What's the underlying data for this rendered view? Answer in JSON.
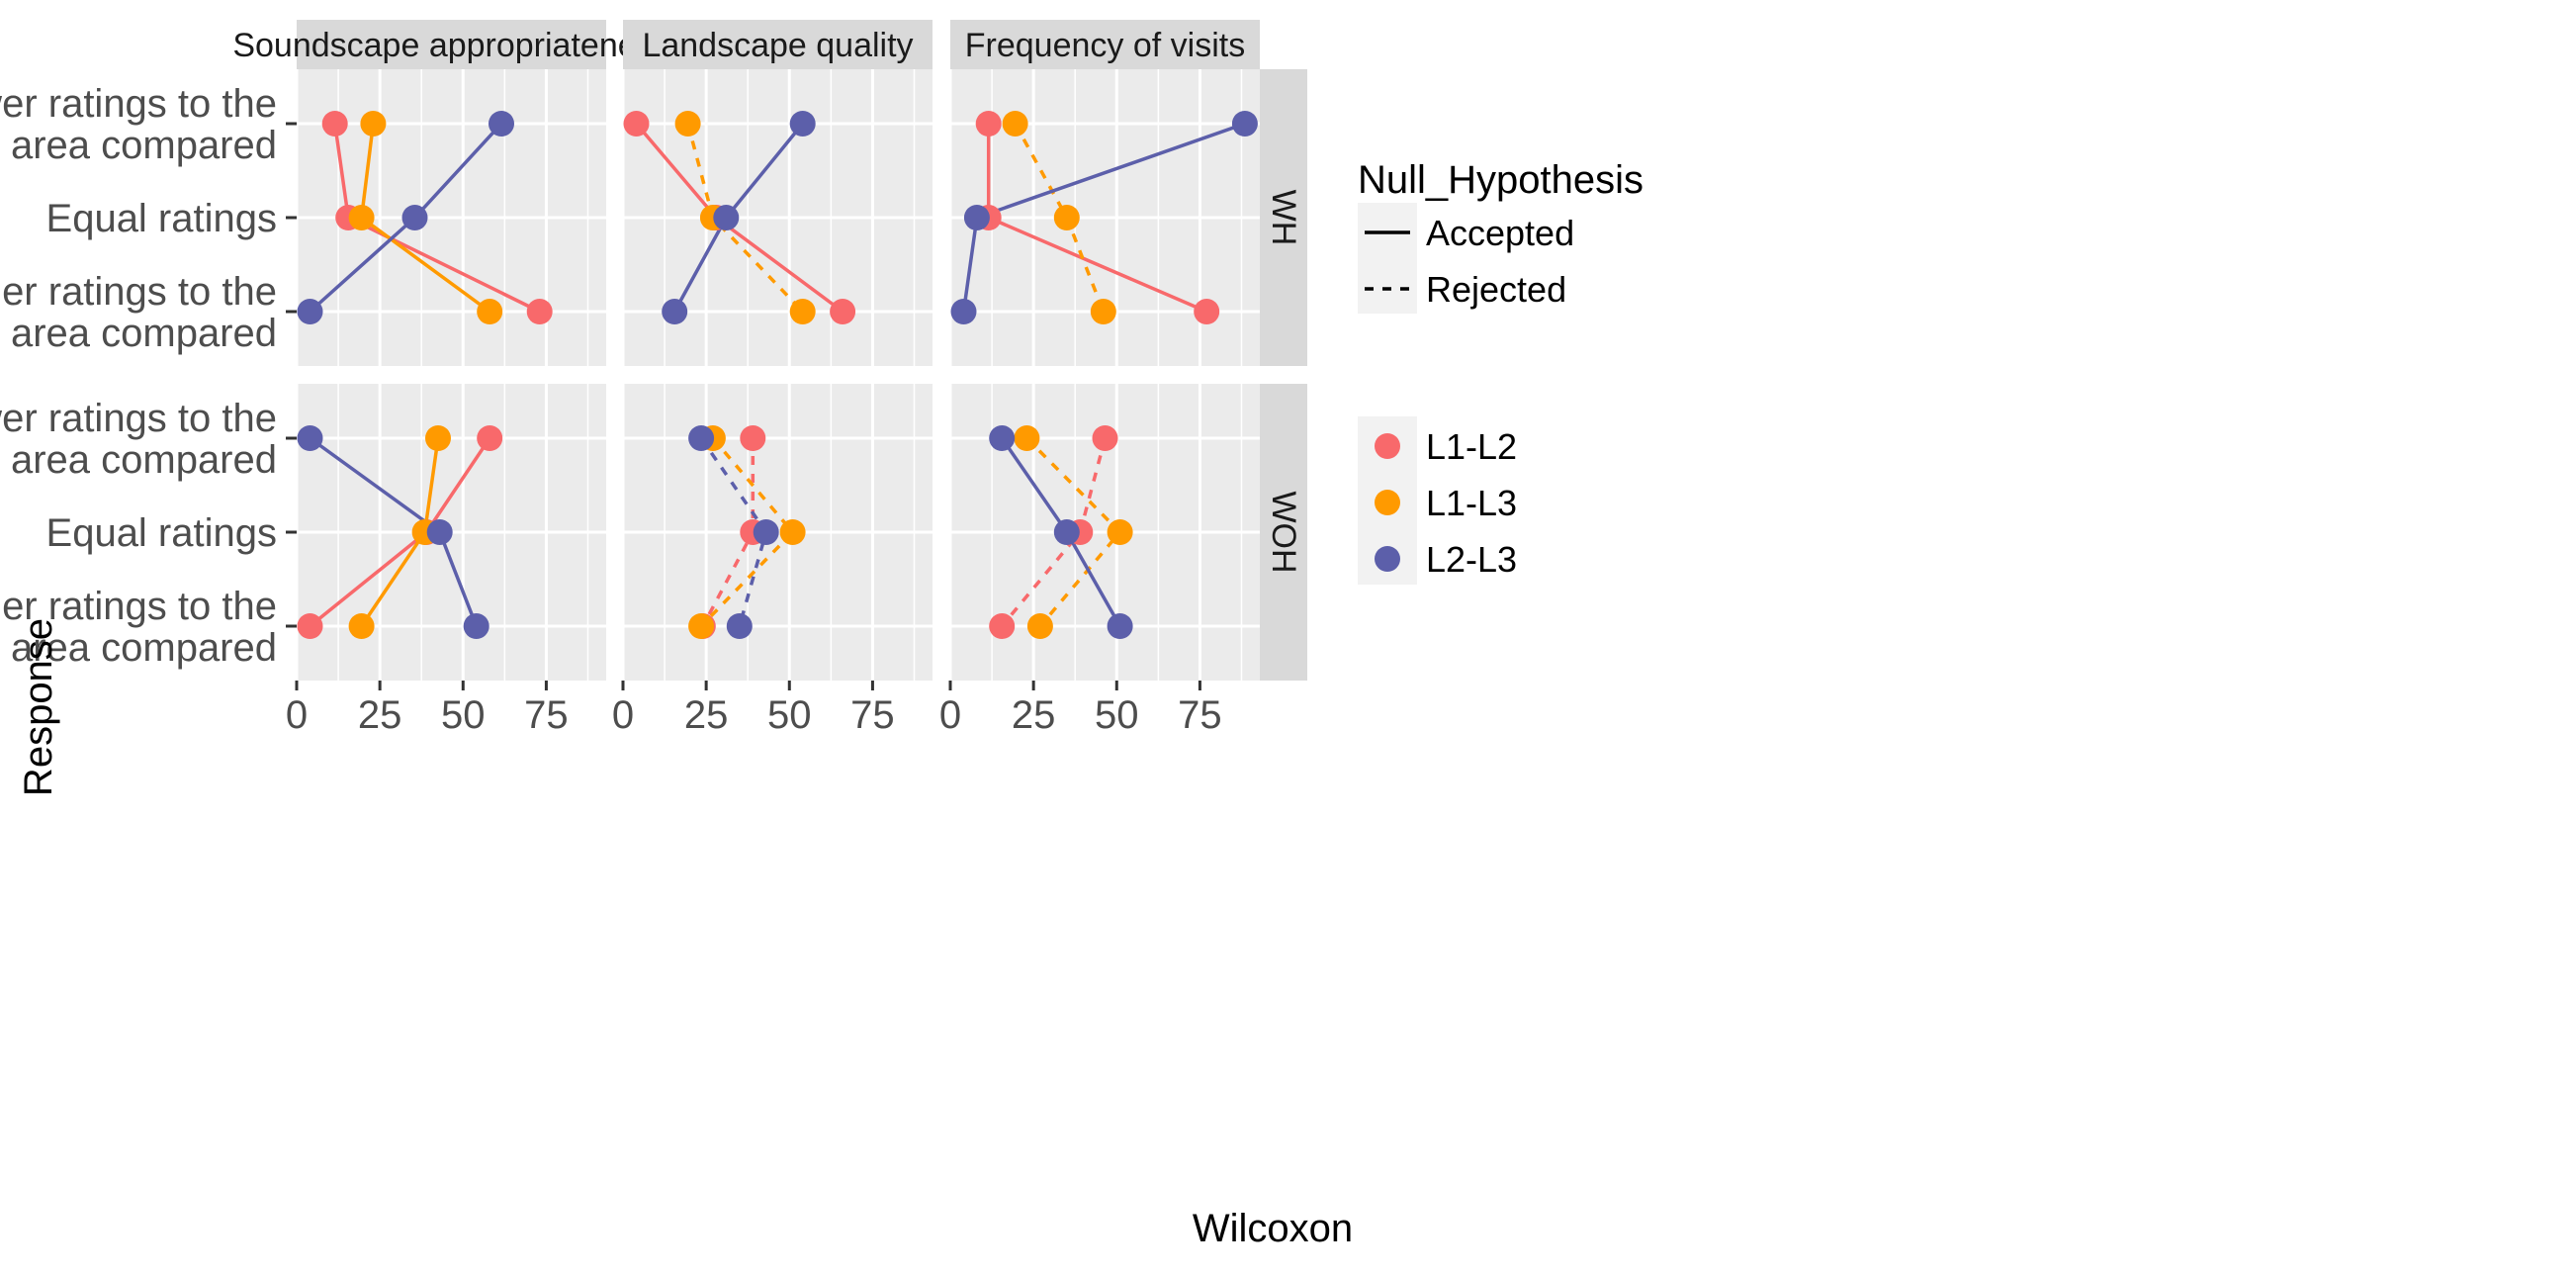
{
  "chart_data": {
    "type": "line",
    "xlabel": "Wilcoxon",
    "ylabel": "Response",
    "xlim": [
      0,
      93
    ],
    "xticks": [
      0,
      25,
      50,
      75
    ],
    "responses": [
      "Lower ratings to the first area compared",
      "Equal ratings",
      "Higher ratings to the first area compared"
    ],
    "response_lines": [
      [
        "Lower ratings to the",
        "first area compared"
      ],
      [
        "Equal ratings"
      ],
      [
        "Higher ratings to the",
        "first area compared"
      ]
    ],
    "columns": [
      "Soundscape appropriateness",
      "Landscape quality",
      "Frequency of visits"
    ],
    "rows": [
      "WH",
      "WOH"
    ],
    "legend": {
      "linetype_title": "Null_Hypothesis",
      "linetypes": [
        {
          "label": "Accepted",
          "dash": "solid"
        },
        {
          "label": "Rejected",
          "dash": "dashed"
        }
      ],
      "colors": [
        {
          "label": "L1-L2",
          "color": "#F8696B"
        },
        {
          "label": "L1-L3",
          "color": "#FF9A00"
        },
        {
          "label": "L2-L3",
          "color": "#5C5FAA"
        }
      ]
    },
    "panels": [
      {
        "row": "WH",
        "column": "Soundscape appropriateness",
        "series": [
          {
            "name": "L1-L2",
            "hypothesis": "Accepted",
            "values": [
              11.5,
              15.5,
              73
            ]
          },
          {
            "name": "L1-L3",
            "hypothesis": "Accepted",
            "values": [
              23,
              19.5,
              58
            ]
          },
          {
            "name": "L2-L3",
            "hypothesis": "Accepted",
            "values": [
              61.5,
              35.5,
              4
            ]
          }
        ]
      },
      {
        "row": "WH",
        "column": "Landscape quality",
        "series": [
          {
            "name": "L1-L2",
            "hypothesis": "Accepted",
            "values": [
              4,
              28,
              66
            ]
          },
          {
            "name": "L1-L3",
            "hypothesis": "Rejected",
            "values": [
              19.5,
              27,
              54
            ]
          },
          {
            "name": "L2-L3",
            "hypothesis": "Accepted",
            "values": [
              54,
              31,
              15.5
            ]
          }
        ]
      },
      {
        "row": "WH",
        "column": "Frequency of visits",
        "series": [
          {
            "name": "L1-L2",
            "hypothesis": "Accepted",
            "values": [
              11.5,
              11.5,
              77
            ]
          },
          {
            "name": "L1-L3",
            "hypothesis": "Rejected",
            "values": [
              19.5,
              35,
              46
            ]
          },
          {
            "name": "L2-L3",
            "hypothesis": "Accepted",
            "values": [
              88.5,
              8,
              4
            ]
          }
        ]
      },
      {
        "row": "WOH",
        "column": "Soundscape appropriateness",
        "series": [
          {
            "name": "L1-L2",
            "hypothesis": "Accepted",
            "values": [
              58,
              39,
              4
            ]
          },
          {
            "name": "L1-L3",
            "hypothesis": "Accepted",
            "values": [
              42.5,
              38.5,
              19.5
            ]
          },
          {
            "name": "L2-L3",
            "hypothesis": "Accepted",
            "values": [
              4,
              43,
              54
            ]
          }
        ]
      },
      {
        "row": "WOH",
        "column": "Landscape quality",
        "series": [
          {
            "name": "L1-L2",
            "hypothesis": "Rejected",
            "values": [
              39,
              39,
              24
            ]
          },
          {
            "name": "L1-L3",
            "hypothesis": "Rejected",
            "values": [
              27,
              51,
              23.5
            ]
          },
          {
            "name": "L2-L3",
            "hypothesis": "Rejected",
            "values": [
              23.5,
              43,
              35
            ]
          }
        ]
      },
      {
        "row": "WOH",
        "column": "Frequency of visits",
        "series": [
          {
            "name": "L1-L2",
            "hypothesis": "Rejected",
            "values": [
              46.5,
              39,
              15.5
            ]
          },
          {
            "name": "L1-L3",
            "hypothesis": "Rejected",
            "values": [
              23,
              51,
              27
            ]
          },
          {
            "name": "L2-L3",
            "hypothesis": "Accepted",
            "values": [
              15.5,
              35,
              51
            ]
          }
        ]
      }
    ]
  }
}
